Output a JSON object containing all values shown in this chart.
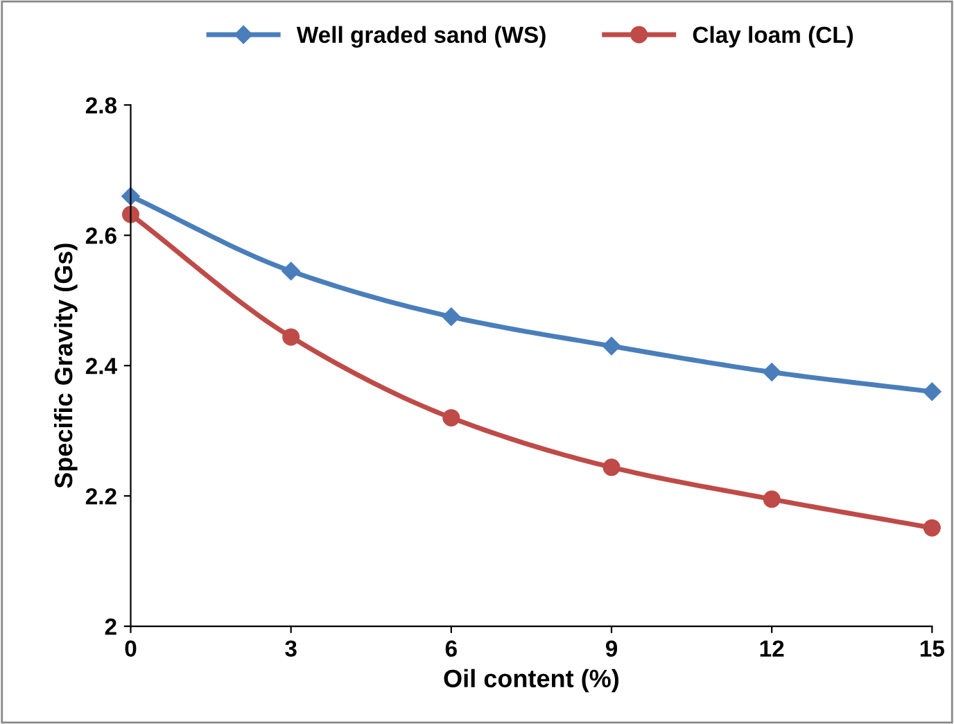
{
  "chart_data": {
    "type": "line",
    "xlabel": "Oil content (%)",
    "ylabel": "Specific Gravity (Gs)",
    "x": [
      0,
      3,
      6,
      9,
      12,
      15
    ],
    "series": [
      {
        "name": "Well graded sand (WS)",
        "color": "#4a7ebb",
        "marker": "diamond",
        "values": [
          2.66,
          2.545,
          2.475,
          2.43,
          2.39,
          2.36
        ]
      },
      {
        "name": "Clay loam (CL)",
        "color": "#be4b48",
        "marker": "circle",
        "values": [
          2.632,
          2.444,
          2.32,
          2.244,
          2.195,
          2.151
        ]
      }
    ],
    "xlim": [
      0,
      15
    ],
    "xticks": [
      0,
      3,
      6,
      9,
      12,
      15
    ],
    "ylim": [
      2,
      2.8
    ],
    "yticks": [
      2,
      2.2,
      2.4,
      2.6,
      2.8
    ],
    "grid": false,
    "legend": "top"
  }
}
